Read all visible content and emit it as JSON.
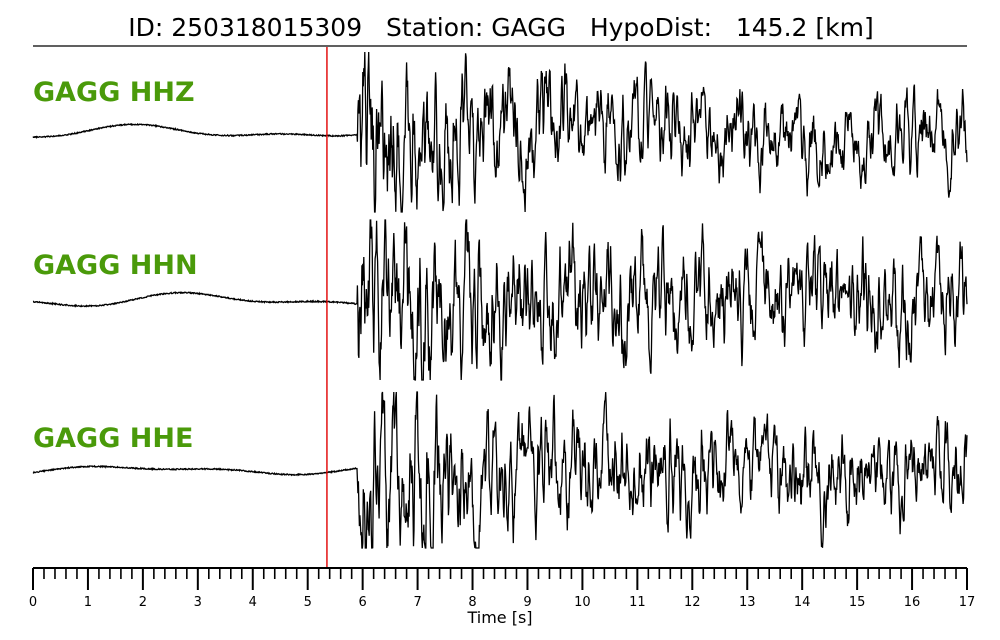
{
  "chart_data": {
    "type": "line",
    "title": "ID: 250318015309   Station: GAGG   HypoDist:   145.2 [km]",
    "xlabel": "Time [s]",
    "ylabel": "",
    "xlim": [
      0,
      17
    ],
    "x_ticks": [
      "0",
      "1",
      "2",
      "3",
      "4",
      "5",
      "6",
      "7",
      "8",
      "9",
      "10",
      "11",
      "12",
      "13",
      "14",
      "15",
      "16",
      "17"
    ],
    "minor_tick_step": 0.2,
    "pick_time": 5.35,
    "label_color": "#4a9a0a",
    "trace_color": "#000000",
    "pick_color": "#e00000",
    "traces": [
      {
        "label": "GAGG HHZ",
        "noise_amplitude": 0.12,
        "signal_onset": 5.9,
        "peak_amplitude": 1.0,
        "coda_amplitude": 0.38,
        "seed": 11,
        "taper_end": 0.12
      },
      {
        "label": "GAGG HHN",
        "noise_amplitude": 0.12,
        "signal_onset": 5.9,
        "peak_amplitude": 0.9,
        "coda_amplitude": 0.5,
        "seed": 23,
        "taper_end": 0.1
      },
      {
        "label": "GAGG HHE",
        "noise_amplitude": 0.08,
        "signal_onset": 5.9,
        "peak_amplitude": 0.95,
        "coda_amplitude": 0.45,
        "seed": 37,
        "taper_end": 0.08
      }
    ]
  }
}
